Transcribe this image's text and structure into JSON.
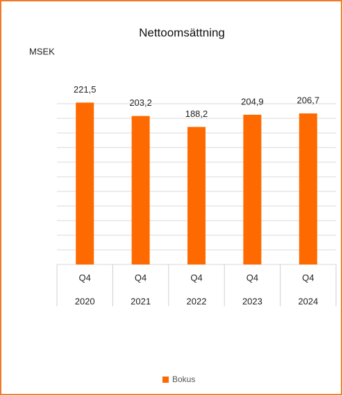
{
  "chart_data": {
    "type": "bar",
    "title": "Nettoomsättning",
    "y_label": "MSEK",
    "categories": [
      "2020",
      "2021",
      "2022",
      "2023",
      "2024"
    ],
    "sub_categories": [
      "Q4",
      "Q4",
      "Q4",
      "Q4",
      "Q4"
    ],
    "series": [
      {
        "name": "Bokus",
        "color": "#ff6a00",
        "values": [
          221.5,
          203.2,
          188.2,
          204.9,
          206.7
        ],
        "value_labels": [
          "221,5",
          "203,2",
          "188,2",
          "204,9",
          "206,7"
        ]
      }
    ],
    "ylim": [
      0,
      220
    ],
    "yticks": [
      0,
      20,
      40,
      60,
      80,
      100,
      120,
      140,
      160,
      180,
      200,
      220
    ],
    "grid": true,
    "legend": "bottom"
  }
}
